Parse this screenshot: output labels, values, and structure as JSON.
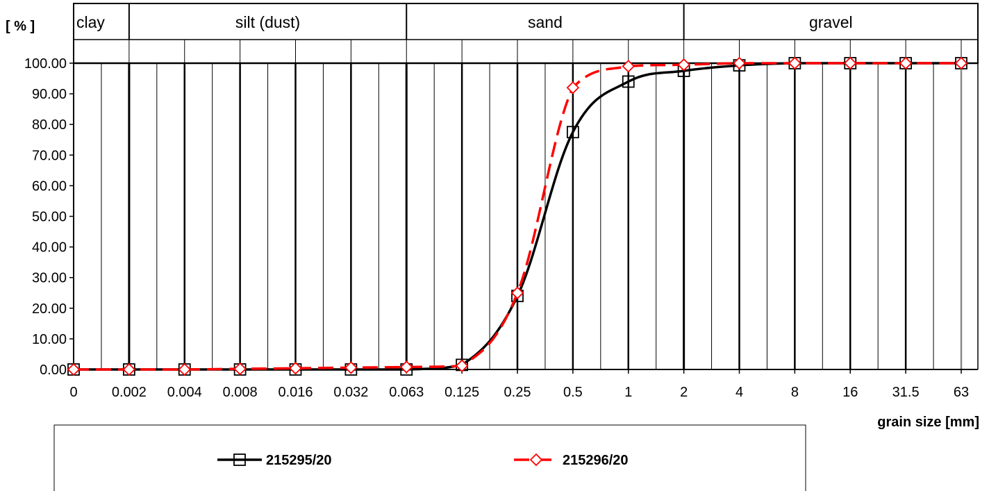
{
  "chart_data": {
    "type": "line",
    "ylabel": "[ % ]",
    "xlabel": "grain size [mm]",
    "x_categories": [
      "0",
      "0.002",
      "0.004",
      "0.008",
      "0.016",
      "0.032",
      "0.063",
      "0.125",
      "0.25",
      "0.5",
      "1",
      "2",
      "4",
      "8",
      "16",
      "31.5",
      "63"
    ],
    "y_ticks": [
      "0.00",
      "10.00",
      "20.00",
      "30.00",
      "40.00",
      "50.00",
      "60.00",
      "70.00",
      "80.00",
      "90.00",
      "100.00"
    ],
    "ylim": [
      0,
      100
    ],
    "zones": [
      {
        "label": "clay",
        "from": "0",
        "to": "0.002"
      },
      {
        "label": "silt (dust)",
        "from": "0.002",
        "to": "0.063"
      },
      {
        "label": "sand",
        "from": "0.063",
        "to": "2"
      },
      {
        "label": "gravel",
        "from": "2",
        "to": "63"
      }
    ],
    "grid": true,
    "legend_position": "bottom",
    "series": [
      {
        "name": "215295/20",
        "color": "#000000",
        "line_style": "solid",
        "marker": "square",
        "values": [
          0,
          0,
          0,
          0,
          0,
          0,
          0,
          1.5,
          24,
          77.5,
          94,
          97.5,
          99.3,
          100,
          100,
          100,
          100
        ]
      },
      {
        "name": "215296/20",
        "color": "#ff0000",
        "line_style": "dashed",
        "marker": "diamond",
        "values": [
          0,
          0,
          0,
          0.2,
          0.4,
          0.6,
          0.8,
          1.2,
          25,
          92,
          99,
          99.5,
          100,
          100,
          100,
          100,
          100
        ]
      }
    ]
  }
}
